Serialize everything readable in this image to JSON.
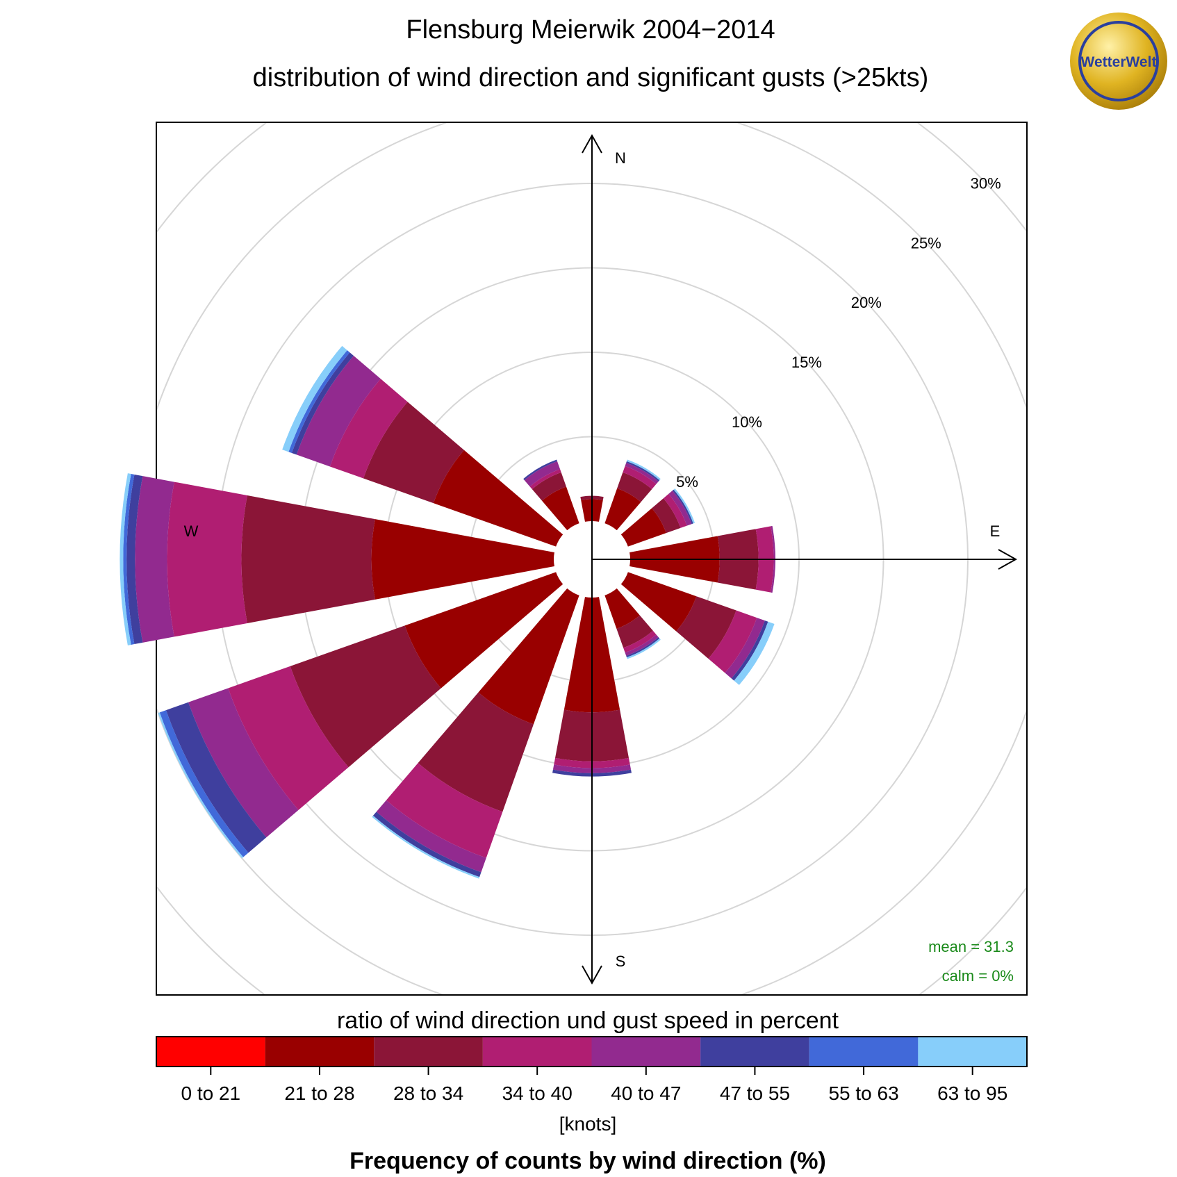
{
  "header": {
    "title": "Flensburg Meierwik 2004−2014",
    "subtitle": "distribution of wind direction and significant gusts (>25kts)"
  },
  "logo": {
    "text": "WetterWelt",
    "color_gold": "#d4a017",
    "color_blue": "#2a3f9e"
  },
  "stats": {
    "mean": "mean = 31.3",
    "calm": "calm = 0%",
    "color": "#1a8a1a"
  },
  "chart_data": {
    "type": "wind-rose",
    "compass": {
      "north": "N",
      "east": "E",
      "south": "S",
      "west": "W"
    },
    "rings": [
      5,
      10,
      15,
      20,
      25,
      30
    ],
    "ring_labels": [
      "5%",
      "10%",
      "15%",
      "20%",
      "25%",
      "30%"
    ],
    "bins": [
      "0 to 21",
      "21 to 28",
      "28 to 34",
      "34 to 40",
      "40 to 47",
      "47 to 55",
      "55 to 63",
      "63 to 95"
    ],
    "bin_colors": [
      "#ff0000",
      "#990000",
      "#8b1537",
      "#b01e72",
      "#922a8f",
      "#3f3f9e",
      "#4169d9",
      "#87cefa"
    ],
    "directions": [
      0,
      30,
      60,
      90,
      120,
      150,
      180,
      210,
      240,
      270,
      300,
      330
    ],
    "cumulative": [
      [
        0,
        1.3,
        1.5,
        1.5,
        1.5,
        1.5,
        1.5,
        1.5
      ],
      [
        0,
        2.2,
        3.2,
        3.6,
        3.8,
        3.9,
        3.9,
        4.0
      ],
      [
        0,
        2.4,
        3.3,
        3.7,
        4.0,
        4.1,
        4.1,
        4.2
      ],
      [
        0,
        5.3,
        7.6,
        8.5,
        8.6,
        8.6,
        8.6,
        8.6
      ],
      [
        0,
        4.3,
        6.8,
        8.1,
        8.6,
        8.8,
        8.8,
        9.2
      ],
      [
        0,
        2.1,
        3.3,
        3.6,
        3.8,
        3.9,
        3.9,
        4.0
      ],
      [
        0,
        6.8,
        9.7,
        10.1,
        10.4,
        10.6,
        10.6,
        10.6
      ],
      [
        0,
        8.1,
        13.6,
        16.5,
        17.4,
        17.7,
        17.7,
        17.8
      ],
      [
        0,
        9.5,
        16.7,
        20.6,
        23.1,
        24.5,
        24.9,
        25.0
      ],
      [
        0,
        10.8,
        18.5,
        22.9,
        24.8,
        25.3,
        25.5,
        25.7
      ],
      [
        0,
        7.7,
        12.1,
        14.2,
        16.3,
        16.6,
        16.8,
        17.2
      ],
      [
        0,
        2.3,
        3.2,
        3.4,
        3.9,
        4.0,
        4.0,
        4.0
      ]
    ],
    "legend_title": "ratio of wind direction und gust speed in percent",
    "legend_unit": "[knots]",
    "xlabel": "Frequency of counts by wind direction (%)"
  }
}
